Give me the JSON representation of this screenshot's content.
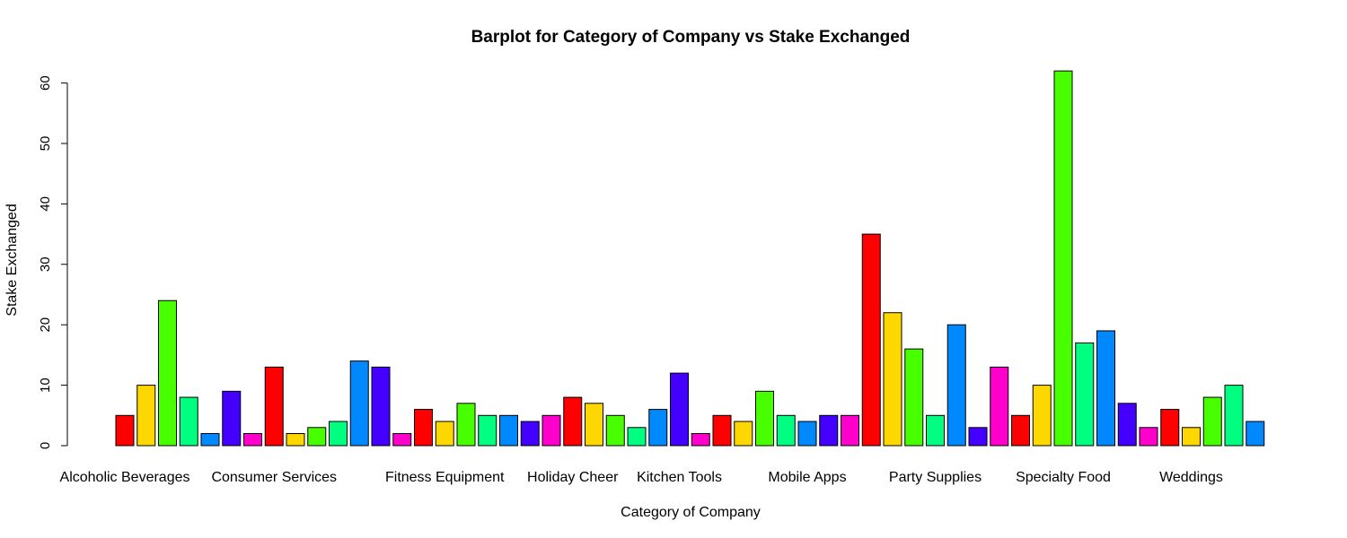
{
  "chart_data": {
    "type": "bar",
    "title": "Barplot for Category of Company vs Stake Exchanged",
    "xlabel": "Category of Company",
    "ylabel": "Stake Exchanged",
    "ylim": [
      0,
      62
    ],
    "yticks": [
      0,
      10,
      20,
      30,
      40,
      50,
      60
    ],
    "grid": false,
    "legend": "none",
    "palette": [
      "#FF0000",
      "#FFD700",
      "#48FF00",
      "#00FF80",
      "#0088FF",
      "#4400FF",
      "#FF00CC"
    ],
    "values": [
      5,
      10,
      24,
      8,
      2,
      9,
      2,
      13,
      2,
      3,
      4,
      14,
      13,
      2,
      6,
      4,
      7,
      5,
      5,
      4,
      5,
      8,
      7,
      5,
      3,
      6,
      12,
      2,
      5,
      4,
      9,
      5,
      4,
      5,
      5,
      35,
      22,
      16,
      5,
      20,
      3,
      13,
      5,
      10,
      62,
      17,
      19,
      7,
      3,
      6,
      3,
      8,
      10,
      4
    ],
    "visible_category_labels": [
      {
        "bar_index": 0,
        "label": "Alcoholic Beverages"
      },
      {
        "bar_index": 7,
        "label": "Consumer Services"
      },
      {
        "bar_index": 15,
        "label": "Fitness Equipment"
      },
      {
        "bar_index": 21,
        "label": "Holiday Cheer"
      },
      {
        "bar_index": 26,
        "label": "Kitchen Tools"
      },
      {
        "bar_index": 32,
        "label": "Mobile Apps"
      },
      {
        "bar_index": 38,
        "label": "Party Supplies"
      },
      {
        "bar_index": 44,
        "label": "Specialty Food"
      },
      {
        "bar_index": 50,
        "label": "Weddings"
      }
    ]
  }
}
